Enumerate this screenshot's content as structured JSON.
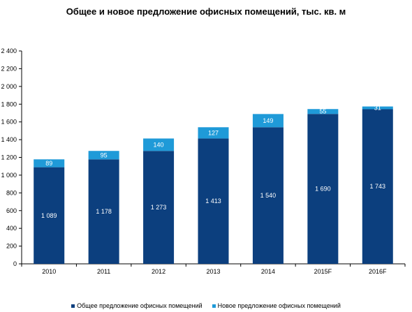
{
  "chart_data": {
    "type": "bar",
    "stacked": true,
    "title": "Общее и новое предложение офисных помещений, тыс. кв. м",
    "xlabel": "",
    "ylabel": "",
    "categories": [
      "2010",
      "2011",
      "2012",
      "2013",
      "2014",
      "2015F",
      "2016F"
    ],
    "series": [
      {
        "name": "Общее предложение офисных помещений",
        "color": "#0c3f7e",
        "label_color": "#ffffff",
        "values": [
          1089,
          1178,
          1273,
          1413,
          1540,
          1690,
          1743
        ],
        "labels": [
          "1 089",
          "1 178",
          "1 273",
          "1 413",
          "1 540",
          "1 690",
          "1 743"
        ]
      },
      {
        "name": "Новое предложение офисных помещений",
        "color": "#1f9ad8",
        "label_color": "#ffffff",
        "values": [
          89,
          95,
          140,
          127,
          149,
          55,
          31
        ],
        "labels": [
          "89",
          "95",
          "140",
          "127",
          "149",
          "55",
          "31"
        ]
      }
    ],
    "ylim": [
      0,
      2400
    ],
    "yticks": [
      0,
      200,
      400,
      600,
      800,
      1000,
      1200,
      1400,
      1600,
      1800,
      2000,
      2200,
      2400
    ],
    "ytick_labels": [
      "0",
      "200",
      "400",
      "600",
      "800",
      "1 000",
      "1 200",
      "1 400",
      "1 600",
      "1 800",
      "2 000",
      "2 200",
      "2 400"
    ],
    "grid": false,
    "legend_position": "bottom"
  }
}
